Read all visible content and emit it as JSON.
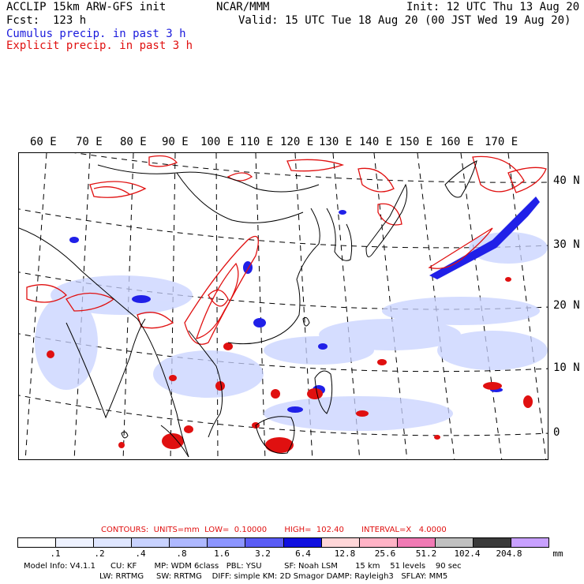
{
  "header": {
    "title_left": "ACCLIP 15km ARW-GFS init",
    "forecast": "Fcst:  123 h",
    "center_label": "NCAR/MMM",
    "init": "Init: 12 UTC Thu 13 Aug 20",
    "valid": "Valid: 15 UTC Tue 18 Aug 20 (00 JST Wed 19 Aug 20)",
    "legend_cumulus": "Cumulus precip. in past 3 h",
    "legend_explicit": "Explicit precip. in past 3 h",
    "legend_cumulus_color": "#1a1adc",
    "legend_explicit_color": "#e01010"
  },
  "map": {
    "longitude_labels": [
      "60 E",
      "70 E",
      "80 E",
      "90 E",
      "100 E",
      "110 E",
      "120 E",
      "130 E",
      "140 E",
      "150 E",
      "160 E",
      "170 E"
    ],
    "latitude_labels": [
      "40 N",
      "30 N",
      "20 N",
      "10 N",
      "0"
    ],
    "coastline_color": "#000000",
    "gridline_style": "dashed"
  },
  "colorbar": {
    "ticks": [
      ".1",
      ".2",
      ".4",
      ".8",
      "1.6",
      "3.2",
      "6.4",
      "12.8",
      "25.6",
      "51.2",
      "102.4",
      "204.8"
    ],
    "unit": "mm",
    "colors": [
      "#ffffff",
      "#eef2ff",
      "#dfe6ff",
      "#c8d2ff",
      "#aeb8ff",
      "#8c95ff",
      "#5a5cf5",
      "#1010e0",
      "#ffd6d8",
      "#ffb3c6",
      "#f07ab4",
      "#c0c0c0",
      "#3a3a3a",
      "#c8a0ff"
    ]
  },
  "contours_line": "CONTOURS:  UNITS=mm  LOW=  0.10000       HIGH=  102.40       INTERVAL=X   4.0000",
  "model_info": {
    "line1": "Model Info: V4.1.1      CU: KF       MP: WDM 6class   PBL: YSU         SF: Noah LSM       15 km    51 levels    90 sec",
    "line2": "LW: RRTMG     SW: RRTMG    DIFF: simple KM: 2D Smagor DAMP: Rayleigh3   SFLAY: MM5"
  }
}
